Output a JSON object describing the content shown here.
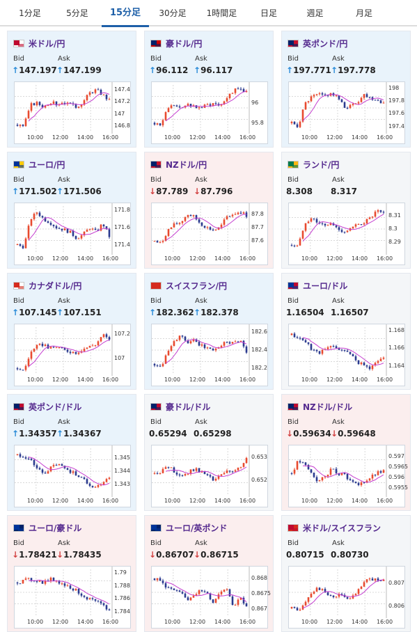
{
  "tabs": [
    {
      "label": "1分足",
      "active": false
    },
    {
      "label": "5分足",
      "active": false
    },
    {
      "label": "15分足",
      "active": true
    },
    {
      "label": "30分足",
      "active": false
    },
    {
      "label": "1時間足",
      "active": false
    },
    {
      "label": "日足",
      "active": false
    },
    {
      "label": "週足",
      "active": false
    },
    {
      "label": "月足",
      "active": false
    }
  ],
  "bid_label": "Bid",
  "ask_label": "Ask",
  "x_labels": [
    "10:00",
    "12:00",
    "14:00",
    "16:00"
  ],
  "colors": {
    "up": "#e84a2f",
    "down": "#2b3a8f",
    "ma": "#c53ed0",
    "card_up": "#e9f3fb",
    "card_down": "#fbeeee"
  },
  "pairs": [
    {
      "name": "米ドル/円",
      "flag": [
        "#bf0a30",
        "#ffffff"
      ],
      "dir": "up",
      "bid": "147.197",
      "ask": "147.199",
      "yticks": [
        "147.4",
        "147.2",
        "147",
        "146.8"
      ],
      "ylim": [
        146.72,
        147.48
      ],
      "trend": [
        146.82,
        146.8,
        147.15,
        147.18,
        147.12,
        147.2,
        147.16,
        147.2,
        147.15,
        147.12,
        147.2,
        147.35,
        147.4,
        147.32,
        147.22
      ]
    },
    {
      "name": "豪ドル/円",
      "flag": [
        "#012169",
        "#cc0000"
      ],
      "dir": "up",
      "bid": "96.112",
      "ask": "96.117",
      "yticks": [
        "96",
        "95.8"
      ],
      "ylim": [
        95.72,
        96.18
      ],
      "trend": [
        95.8,
        95.78,
        95.95,
        95.98,
        95.93,
        96.0,
        95.96,
        95.95,
        95.98,
        96.0,
        95.98,
        96.06,
        96.12,
        96.14,
        96.11
      ]
    },
    {
      "name": "英ポンド/円",
      "flag": [
        "#012169",
        "#c8102e"
      ],
      "dir": "up",
      "bid": "197.771",
      "ask": "197.778",
      "yticks": [
        "198",
        "197.8",
        "197.6",
        "197.4"
      ],
      "ylim": [
        197.33,
        198.05
      ],
      "trend": [
        197.45,
        197.4,
        197.75,
        197.85,
        197.9,
        197.88,
        197.92,
        197.85,
        197.7,
        197.72,
        197.78,
        197.9,
        197.85,
        197.82,
        197.77
      ]
    },
    {
      "name": "ユーロ/円",
      "flag": [
        "#003399",
        "#ffcc00"
      ],
      "dir": "up",
      "bid": "171.502",
      "ask": "171.506",
      "yticks": [
        "171.8",
        "171.6",
        "171.4"
      ],
      "ylim": [
        171.32,
        171.85
      ],
      "trend": [
        171.4,
        171.38,
        171.7,
        171.78,
        171.7,
        171.66,
        171.6,
        171.58,
        171.55,
        171.48,
        171.52,
        171.6,
        171.55,
        171.65,
        171.5
      ]
    },
    {
      "name": "NZドル/円",
      "flag": [
        "#012169",
        "#cc142b"
      ],
      "dir": "down",
      "bid": "87.789",
      "ask": "87.796",
      "yticks": [
        "87.8",
        "87.7",
        "87.6"
      ],
      "ylim": [
        87.52,
        87.86
      ],
      "trend": [
        87.6,
        87.58,
        87.68,
        87.72,
        87.74,
        87.8,
        87.78,
        87.73,
        87.7,
        87.68,
        87.7,
        87.78,
        87.8,
        87.82,
        87.79
      ]
    },
    {
      "name": "ランド/円",
      "flag": [
        "#007a4d",
        "#ffb612"
      ],
      "dir": "flat",
      "bid": "8.308",
      "ask": "8.317",
      "yticks": [
        "8.31",
        "8.3",
        "8.29"
      ],
      "ylim": [
        8.283,
        8.317
      ],
      "trend": [
        8.288,
        8.287,
        8.305,
        8.308,
        8.305,
        8.302,
        8.304,
        8.3,
        8.298,
        8.3,
        8.303,
        8.305,
        8.308,
        8.313,
        8.311
      ]
    },
    {
      "name": "カナダドル/円",
      "flag": [
        "#d52b1e",
        "#ffffff"
      ],
      "dir": "up",
      "bid": "107.145",
      "ask": "107.151",
      "yticks": [
        "107.2",
        "107"
      ],
      "ylim": [
        106.88,
        107.26
      ],
      "trend": [
        106.92,
        106.9,
        107.05,
        107.1,
        107.12,
        107.08,
        107.1,
        107.07,
        107.06,
        107.05,
        107.08,
        107.1,
        107.12,
        107.2,
        107.15
      ]
    },
    {
      "name": "スイスフラン/円",
      "flag": [
        "#d52b1e",
        "#d52b1e"
      ],
      "dir": "up",
      "bid": "182.362",
      "ask": "182.378",
      "yticks": [
        "182.6",
        "182.4",
        "182.2"
      ],
      "ylim": [
        182.15,
        182.65
      ],
      "trend": [
        182.25,
        182.22,
        182.4,
        182.5,
        182.55,
        182.48,
        182.5,
        182.45,
        182.42,
        182.4,
        182.45,
        182.5,
        182.48,
        182.52,
        182.37
      ]
    },
    {
      "name": "ユーロ/ドル",
      "flag": [
        "#003399",
        "#bf0a30"
      ],
      "dir": "flat",
      "bid": "1.16504",
      "ask": "1.16507",
      "yticks": [
        "1.168",
        "1.166",
        "1.164"
      ],
      "ylim": [
        1.1632,
        1.1684
      ],
      "trend": [
        1.1675,
        1.1672,
        1.1668,
        1.166,
        1.1655,
        1.1658,
        1.1662,
        1.166,
        1.1658,
        1.1652,
        1.1645,
        1.164,
        1.1638,
        1.1645,
        1.165
      ]
    },
    {
      "name": "英ポンド/ドル",
      "flag": [
        "#012169",
        "#bf0a30"
      ],
      "dir": "up",
      "bid": "1.34357",
      "ask": "1.34367",
      "yticks": [
        "1.345",
        "1.344",
        "1.343"
      ],
      "ylim": [
        1.3423,
        1.3457
      ],
      "trend": [
        1.3452,
        1.3451,
        1.3448,
        1.3442,
        1.3438,
        1.3442,
        1.3445,
        1.3443,
        1.344,
        1.3438,
        1.3434,
        1.343,
        1.3428,
        1.3432,
        1.3436
      ]
    },
    {
      "name": "豪ドル/ドル",
      "flag": [
        "#012169",
        "#bf0a30"
      ],
      "dir": "flat",
      "bid": "0.65294",
      "ask": "0.65298",
      "yticks": [
        "0.653",
        "0.652"
      ],
      "ylim": [
        0.6514,
        0.6534
      ],
      "trend": [
        0.6523,
        0.6524,
        0.6526,
        0.6524,
        0.6522,
        0.6523,
        0.6525,
        0.6524,
        0.6522,
        0.652,
        0.6522,
        0.6524,
        0.6523,
        0.6526,
        0.6529
      ]
    },
    {
      "name": "NZドル/ドル",
      "flag": [
        "#012169",
        "#bf0a30"
      ],
      "dir": "down",
      "bid": "0.59634",
      "ask": "0.59648",
      "yticks": [
        "0.597",
        "0.5965",
        "0.596",
        "0.5955"
      ],
      "ylim": [
        0.5952,
        0.5974
      ],
      "trend": [
        0.5962,
        0.5968,
        0.5966,
        0.5962,
        0.5958,
        0.596,
        0.5964,
        0.5962,
        0.5962,
        0.5958,
        0.5956,
        0.5958,
        0.596,
        0.5962,
        0.5963
      ]
    },
    {
      "name": "ユーロ/豪ドル",
      "flag": [
        "#003399",
        "#012169"
      ],
      "dir": "down",
      "bid": "1.78421",
      "ask": "1.78435",
      "yticks": [
        "1.79",
        "1.788",
        "1.786",
        "1.784"
      ],
      "ylim": [
        1.7835,
        1.7905
      ],
      "trend": [
        1.7885,
        1.7888,
        1.789,
        1.7888,
        1.7885,
        1.789,
        1.7888,
        1.7882,
        1.7878,
        1.7872,
        1.7865,
        1.786,
        1.7855,
        1.785,
        1.7842
      ]
    },
    {
      "name": "ユーロ/英ポンド",
      "flag": [
        "#003399",
        "#012169"
      ],
      "dir": "down",
      "bid": "0.86707",
      "ask": "0.86715",
      "yticks": [
        "0.868",
        "0.8675",
        "0.867"
      ],
      "ylim": [
        0.8668,
        0.8683
      ],
      "trend": [
        0.868,
        0.8679,
        0.8677,
        0.8676,
        0.8675,
        0.8673,
        0.8675,
        0.8676,
        0.8675,
        0.8672,
        0.8676,
        0.8677,
        0.8671,
        0.8674,
        0.8671
      ]
    },
    {
      "name": "米ドル/スイスフラン",
      "flag": [
        "#bf0a30",
        "#d52b1e"
      ],
      "dir": "flat",
      "bid": "0.80715",
      "ask": "0.80730",
      "yticks": [
        "0.807",
        "0.806"
      ],
      "ylim": [
        0.8056,
        0.8076
      ],
      "trend": [
        0.8059,
        0.8058,
        0.8062,
        0.8066,
        0.8068,
        0.8066,
        0.8064,
        0.8065,
        0.8064,
        0.8063,
        0.8066,
        0.807,
        0.8072,
        0.8071,
        0.8072
      ]
    }
  ]
}
